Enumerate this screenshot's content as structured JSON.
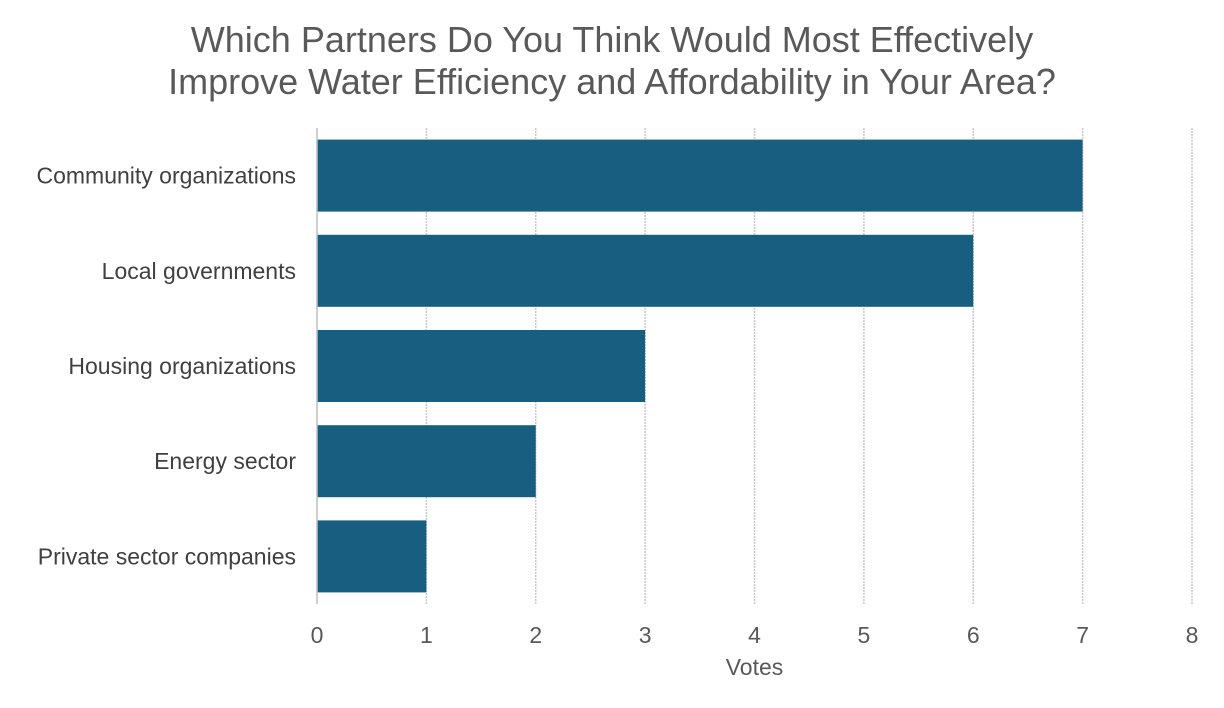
{
  "chart_data": {
    "type": "bar",
    "orientation": "horizontal",
    "title": [
      "Which Partners Do You Think Would Most Effectively",
      "Improve Water Efficiency and Affordability in Your Area?"
    ],
    "categories": [
      "Community organizations",
      "Local governments",
      "Housing organizations",
      "Energy sector",
      "Private sector companies"
    ],
    "values": [
      7,
      6,
      3,
      2,
      1
    ],
    "xlabel": "Votes",
    "ylabel": "",
    "xlim": [
      0,
      8
    ],
    "xticks": [
      "0",
      "1",
      "2",
      "3",
      "4",
      "5",
      "6",
      "7",
      "8"
    ],
    "grid": true,
    "legend": "none",
    "bar_color": "#175E80"
  }
}
